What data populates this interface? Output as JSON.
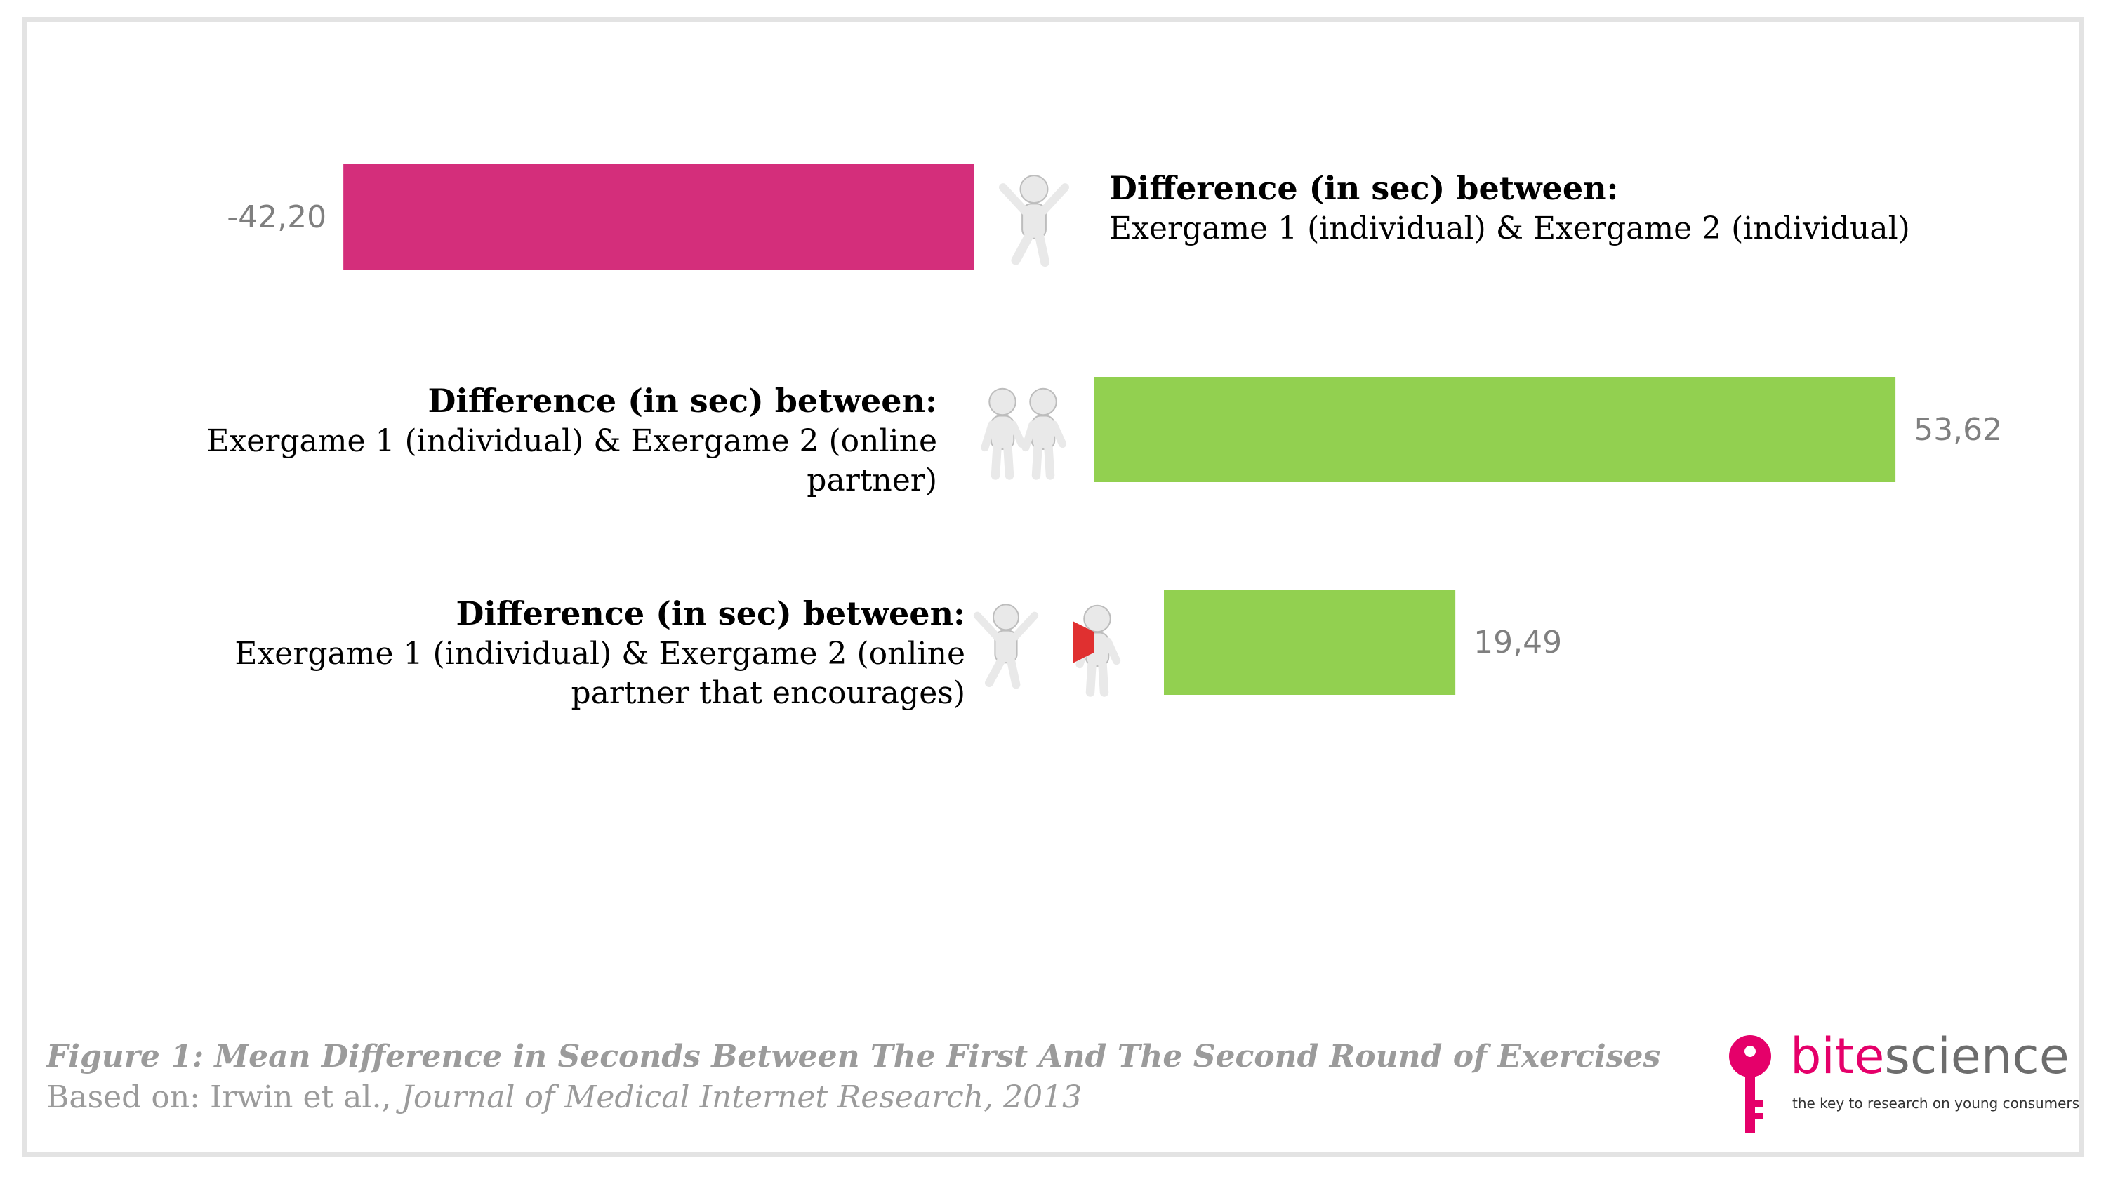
{
  "chart_data": {
    "type": "bar",
    "orientation": "horizontal",
    "categories": [
      {
        "heading": "Difference (in sec) between:",
        "lines": [
          "Exergame 1 (individual) & Exergame 2 (individual)"
        ],
        "icon": "jumping-figure-icon"
      },
      {
        "heading": "Difference (in sec) between:",
        "lines": [
          "Exergame 1 (individual) & Exergame 2 (online",
          "partner)"
        ],
        "icon": "handshake-figures-icon"
      },
      {
        "heading": "Difference (in sec) between:",
        "lines": [
          "Exergame 1 (individual) & Exergame 2 (online",
          "partner that encourages)"
        ],
        "icon": "megaphone-figures-icon"
      }
    ],
    "values": [
      -42.2,
      53.62,
      19.49
    ],
    "value_labels": [
      "-42,20",
      "53,62",
      "19,49"
    ],
    "colors": {
      "negative": "#d42e7b",
      "positive": "#92d050"
    },
    "grid": false,
    "legend": "none"
  },
  "caption": {
    "title": "Figure 1: Mean Difference in Seconds Between The First And The Second Round of Exercises",
    "source_prefix": "Based on: Irwin et al., ",
    "source_journal": "Journal of Medical Internet Research, 2013"
  },
  "logo": {
    "word_part1": "bite",
    "word_part2": "science",
    "tagline": "the key to research on young consumers",
    "color_primary": "#e5006a",
    "color_secondary": "#6d6d6d"
  }
}
